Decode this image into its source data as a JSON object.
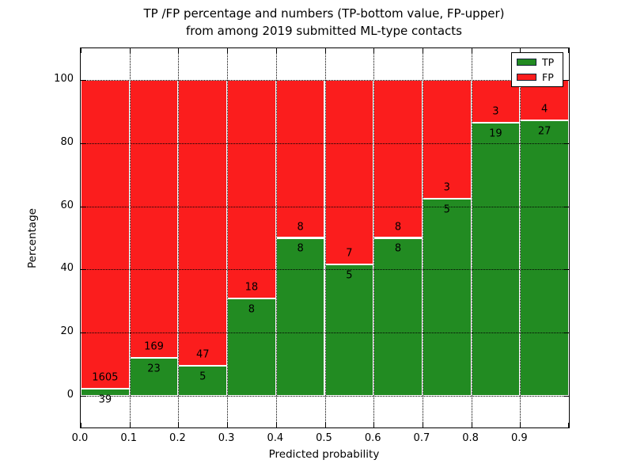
{
  "chart_data": {
    "type": "bar",
    "stacked": true,
    "title_lines": [
      "TP /FP percentage and numbers (TP-bottom value, FP-upper)",
      "from among 2019 submitted ML-type contacts"
    ],
    "xlabel": "Predicted probability",
    "ylabel": "Percentage",
    "xlim": [
      0.0,
      1.0
    ],
    "ylim": [
      -10,
      110
    ],
    "bin_width": 0.1,
    "bin_starts": [
      0.0,
      0.1,
      0.2,
      0.3,
      0.4,
      0.5,
      0.6,
      0.7,
      0.8,
      0.9
    ],
    "xtick_labels": [
      "0.0",
      "0.1",
      "0.2",
      "0.3",
      "0.4",
      "0.5",
      "0.6",
      "0.7",
      "0.8",
      "0.9"
    ],
    "ytick_values": [
      0,
      20,
      40,
      60,
      80,
      100
    ],
    "grid": "dotted",
    "legend_position": "upper right",
    "series": [
      {
        "name": "TP",
        "color": "#228b22",
        "counts": [
          39,
          23,
          5,
          8,
          8,
          5,
          8,
          5,
          19,
          27
        ]
      },
      {
        "name": "FP",
        "color": "#fb1d1d",
        "counts": [
          1605,
          169,
          47,
          18,
          8,
          7,
          8,
          3,
          3,
          4
        ]
      }
    ],
    "tp_percent_of_bin": [
      2.4,
      12.0,
      9.6,
      30.8,
      50.0,
      41.7,
      50.0,
      62.5,
      86.4,
      87.1
    ],
    "bar_edge_color": "#ffffff",
    "axis_color": "#000000"
  }
}
